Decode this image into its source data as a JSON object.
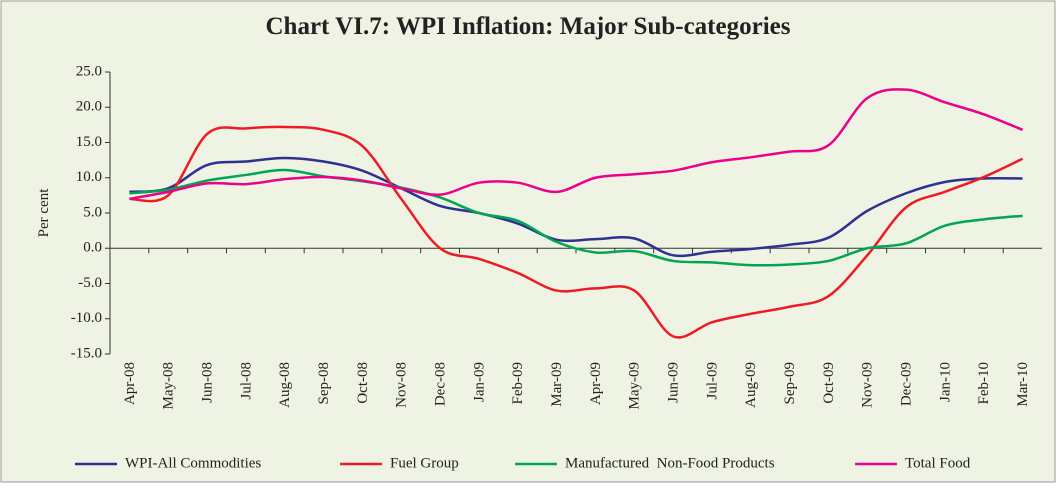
{
  "chart_data": {
    "type": "line",
    "title": "Chart VI.7: WPI Inflation: Major Sub-categories",
    "ylabel": "Per cent",
    "categories": [
      "Apr-08",
      "May-08",
      "Jun-08",
      "Jul-08",
      "Aug-08",
      "Sep-08",
      "Oct-08",
      "Nov-08",
      "Dec-08",
      "Jan-09",
      "Feb-09",
      "Mar-09",
      "Apr-09",
      "May-09",
      "Jun-09",
      "Jul-09",
      "Aug-09",
      "Sep-09",
      "Oct-09",
      "Nov-09",
      "Dec-09",
      "Jan-10",
      "Feb-10",
      "Mar-10"
    ],
    "series": [
      {
        "name": "WPI-All Commodities",
        "color": "#2e3192",
        "values": [
          8.0,
          8.5,
          11.8,
          12.3,
          12.8,
          12.3,
          11.0,
          8.5,
          6.0,
          5.0,
          3.5,
          1.2,
          1.3,
          1.4,
          -1.0,
          -0.5,
          -0.1,
          0.5,
          1.5,
          5.3,
          7.8,
          9.4,
          9.9,
          9.9
        ]
      },
      {
        "name": "Fuel Group",
        "color": "#ed1c24",
        "values": [
          7.0,
          7.5,
          16.2,
          17.0,
          17.2,
          16.8,
          14.5,
          7.0,
          0.0,
          -1.5,
          -3.5,
          -6.0,
          -5.7,
          -6.0,
          -12.5,
          -10.5,
          -9.3,
          -8.3,
          -6.8,
          -1.0,
          5.8,
          8.0,
          10.1,
          12.7
        ]
      },
      {
        "name": "Manufactured  Non-Food Products",
        "color": "#00a651",
        "values": [
          7.8,
          8.3,
          9.6,
          10.4,
          11.1,
          10.2,
          9.5,
          8.6,
          7.2,
          5.0,
          3.9,
          0.9,
          -0.6,
          -0.4,
          -1.8,
          -2.0,
          -2.4,
          -2.3,
          -1.8,
          0.0,
          0.7,
          3.2,
          4.1,
          4.6
        ]
      },
      {
        "name": "Total Food",
        "color": "#ec008c",
        "values": [
          7.0,
          8.0,
          9.2,
          9.1,
          9.8,
          10.1,
          9.6,
          8.5,
          7.6,
          9.3,
          9.3,
          8.0,
          10.0,
          10.5,
          11.0,
          12.2,
          12.9,
          13.7,
          14.6,
          21.3,
          22.5,
          20.7,
          19.0,
          16.8
        ]
      }
    ],
    "ylim": [
      -15,
      25
    ],
    "yticks": [
      {
        "value": -15,
        "label": "-15.0"
      },
      {
        "value": -10,
        "label": "-10.0"
      },
      {
        "value": -5,
        "label": "-5.0"
      },
      {
        "value": 0,
        "label": "0.0"
      },
      {
        "value": 5,
        "label": "5.0"
      },
      {
        "value": 10,
        "label": "10.0"
      },
      {
        "value": 15,
        "label": "15.0"
      },
      {
        "value": 20,
        "label": "20.0"
      },
      {
        "value": 25,
        "label": "25.0"
      }
    ],
    "legend": "bottom"
  }
}
